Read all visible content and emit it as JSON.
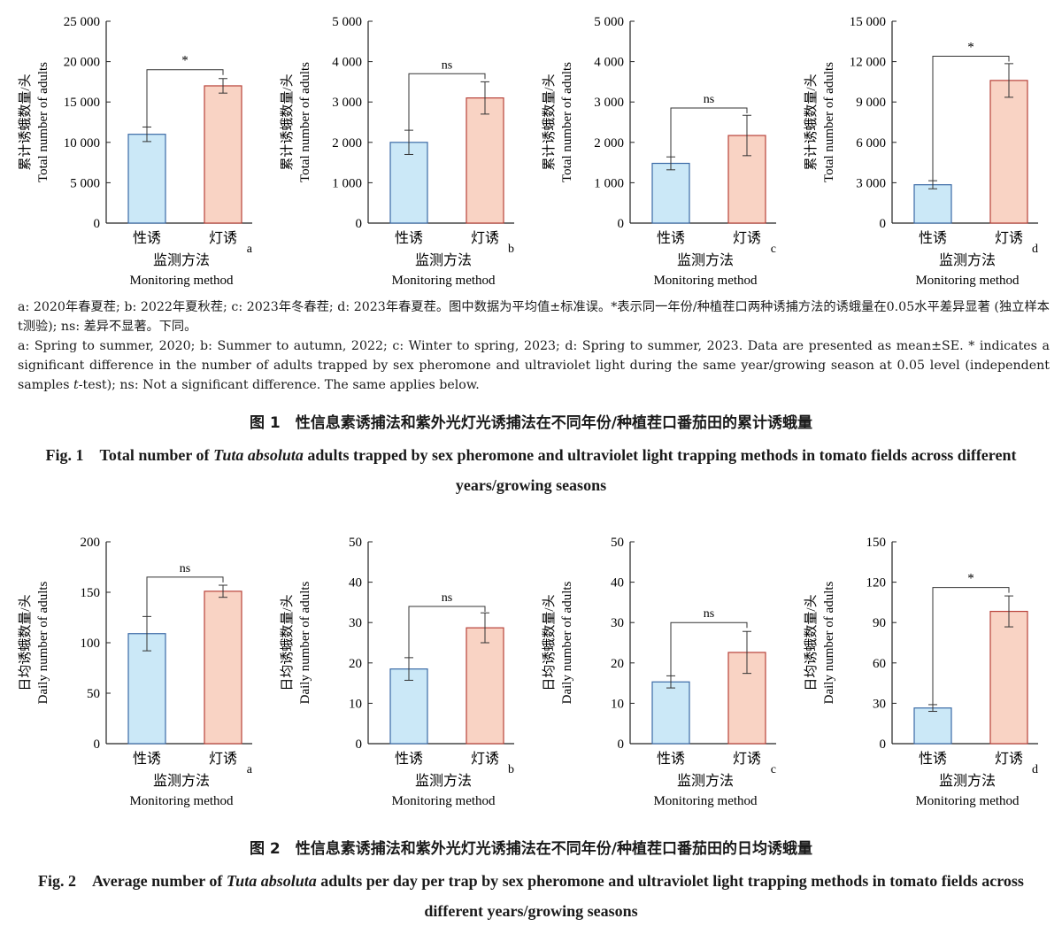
{
  "figure1": {
    "notes_cn": "a: 2020年春夏茬; b: 2022年夏秋茬; c: 2023年冬春茬; d: 2023年春夏茬。图中数据为平均值±标准误。*表示同一年份/种植茬口两种诱捕方法的诱蛾量在0.05水平差异显著 (独立样本t测验); ns: 差异不显著。下同。",
    "notes_en_1": "a: Spring to summer, 2020; b: Summer to autumn, 2022; c: Winter to spring, 2023; d: Spring to summer, 2023. Data are presented as mean±SE. * indicates a significant difference in the number of adults trapped by sex pheromone and ultraviolet light during the same year/growing season at 0.05 level (independent samples ",
    "notes_en_t": "t",
    "notes_en_2": "-test); ns: Not a significant difference. The same applies below.",
    "caption_cn": "图 1　性信息素诱捕法和紫外光灯光诱捕法在不同年份/种植茬口番茄田的累计诱蛾量",
    "caption_en_pre": "Fig. 1　Total number of ",
    "caption_en_species": "Tuta absoluta",
    "caption_en_post": " adults trapped by sex pheromone and ultraviolet light trapping methods in tomato fields across different years/growing seasons"
  },
  "figure2": {
    "caption_cn": "图 2　性信息素诱捕法和紫外光灯光诱捕法在不同年份/种植茬口番茄田的日均诱蛾量",
    "caption_en_pre": "Fig. 2　Average number of ",
    "caption_en_species": "Tuta absoluta",
    "caption_en_post": " adults per day per trap by sex pheromone and ultraviolet light trapping methods in tomato fields across different years/growing seasons"
  },
  "colors": {
    "pheromone_fill": "#cbe8f7",
    "pheromone_edge": "#3b6aa6",
    "light_fill": "#f9d3c4",
    "light_edge": "#b8423a",
    "axis": "#222222"
  },
  "chart_data": [
    {
      "figure": 1,
      "panel": "a",
      "type": "bar",
      "categories": [
        "性诱",
        "灯诱"
      ],
      "values": [
        11000,
        17000
      ],
      "errors": [
        900,
        900
      ],
      "ylim": [
        0,
        25000
      ],
      "yticks": [
        0,
        5000,
        10000,
        15000,
        20000,
        25000
      ],
      "tick_labels": [
        "0",
        "5 000",
        "10 000",
        "15 000",
        "20 000",
        "25 000"
      ],
      "ylabel_cn": "累计诱蛾数量/头",
      "ylabel_en": "Total number of adults",
      "xlabel_cn": "监测方法",
      "xlabel_en": "Monitoring method",
      "significance": "*",
      "sig_level": 19000,
      "grid": false
    },
    {
      "figure": 1,
      "panel": "b",
      "type": "bar",
      "categories": [
        "性诱",
        "灯诱"
      ],
      "values": [
        2000,
        3100
      ],
      "errors": [
        300,
        400
      ],
      "ylim": [
        0,
        5000
      ],
      "yticks": [
        0,
        1000,
        2000,
        3000,
        4000,
        5000
      ],
      "tick_labels": [
        "0",
        "1 000",
        "2 000",
        "3 000",
        "4 000",
        "5 000"
      ],
      "ylabel_cn": "累计诱蛾数量/头",
      "ylabel_en": "Total number of adults",
      "xlabel_cn": "监测方法",
      "xlabel_en": "Monitoring method",
      "significance": "ns",
      "sig_level": 3700,
      "grid": false
    },
    {
      "figure": 1,
      "panel": "c",
      "type": "bar",
      "categories": [
        "性诱",
        "灯诱"
      ],
      "values": [
        1480,
        2170
      ],
      "errors": [
        160,
        500
      ],
      "ylim": [
        0,
        5000
      ],
      "yticks": [
        0,
        1000,
        2000,
        3000,
        4000,
        5000
      ],
      "tick_labels": [
        "0",
        "1 000",
        "2 000",
        "3 000",
        "4 000",
        "5 000"
      ],
      "ylabel_cn": "累计诱蛾数量/头",
      "ylabel_en": "Total number of adults",
      "xlabel_cn": "监测方法",
      "xlabel_en": "Monitoring method",
      "significance": "ns",
      "sig_level": 2850,
      "grid": false
    },
    {
      "figure": 1,
      "panel": "d",
      "type": "bar",
      "categories": [
        "性诱",
        "灯诱"
      ],
      "values": [
        2850,
        10600
      ],
      "errors": [
        300,
        1250
      ],
      "ylim": [
        0,
        15000
      ],
      "yticks": [
        0,
        3000,
        6000,
        9000,
        12000,
        15000
      ],
      "tick_labels": [
        "0",
        "3 000",
        "6 000",
        "9 000",
        "12 000",
        "15 000"
      ],
      "ylabel_cn": "累计诱蛾数量/头",
      "ylabel_en": "Total number of adults",
      "xlabel_cn": "监测方法",
      "xlabel_en": "Monitoring method",
      "significance": "*",
      "sig_level": 12400,
      "grid": false
    },
    {
      "figure": 2,
      "panel": "a",
      "type": "bar",
      "categories": [
        "性诱",
        "灯诱"
      ],
      "values": [
        109,
        151
      ],
      "errors": [
        17,
        6
      ],
      "ylim": [
        0,
        200
      ],
      "yticks": [
        0,
        50,
        100,
        150,
        200
      ],
      "tick_labels": [
        "0",
        "50",
        "100",
        "150",
        "200"
      ],
      "ylabel_cn": "日均诱蛾数量/头",
      "ylabel_en": "Daily number of adults",
      "xlabel_cn": "监测方法",
      "xlabel_en": "Monitoring method",
      "significance": "ns",
      "sig_level": 165,
      "grid": false
    },
    {
      "figure": 2,
      "panel": "b",
      "type": "bar",
      "categories": [
        "性诱",
        "灯诱"
      ],
      "values": [
        18.5,
        28.7
      ],
      "errors": [
        2.8,
        3.7
      ],
      "ylim": [
        0,
        50
      ],
      "yticks": [
        0,
        10,
        20,
        30,
        40,
        50
      ],
      "tick_labels": [
        "0",
        "10",
        "20",
        "30",
        "40",
        "50"
      ],
      "ylabel_cn": "日均诱蛾数量/头",
      "ylabel_en": "Daily number of adults",
      "xlabel_cn": "监测方法",
      "xlabel_en": "Monitoring method",
      "significance": "ns",
      "sig_level": 34,
      "grid": false
    },
    {
      "figure": 2,
      "panel": "c",
      "type": "bar",
      "categories": [
        "性诱",
        "灯诱"
      ],
      "values": [
        15.3,
        22.6
      ],
      "errors": [
        1.5,
        5.2
      ],
      "ylim": [
        0,
        50
      ],
      "yticks": [
        0,
        10,
        20,
        30,
        40,
        50
      ],
      "tick_labels": [
        "0",
        "10",
        "20",
        "30",
        "40",
        "50"
      ],
      "ylabel_cn": "日均诱蛾数量/头",
      "ylabel_en": "Daily number of adults",
      "xlabel_cn": "监测方法",
      "xlabel_en": "Monitoring method",
      "significance": "ns",
      "sig_level": 30,
      "grid": false
    },
    {
      "figure": 2,
      "panel": "d",
      "type": "bar",
      "categories": [
        "性诱",
        "灯诱"
      ],
      "values": [
        26.5,
        98.3
      ],
      "errors": [
        2.5,
        11.5
      ],
      "ylim": [
        0,
        150
      ],
      "yticks": [
        0,
        30,
        60,
        90,
        120,
        150
      ],
      "tick_labels": [
        "0",
        "30",
        "60",
        "90",
        "120",
        "150"
      ],
      "ylabel_cn": "日均诱蛾数量/头",
      "ylabel_en": "Daily number of adults",
      "xlabel_cn": "监测方法",
      "xlabel_en": "Monitoring method",
      "significance": "*",
      "sig_level": 116,
      "grid": false
    }
  ]
}
